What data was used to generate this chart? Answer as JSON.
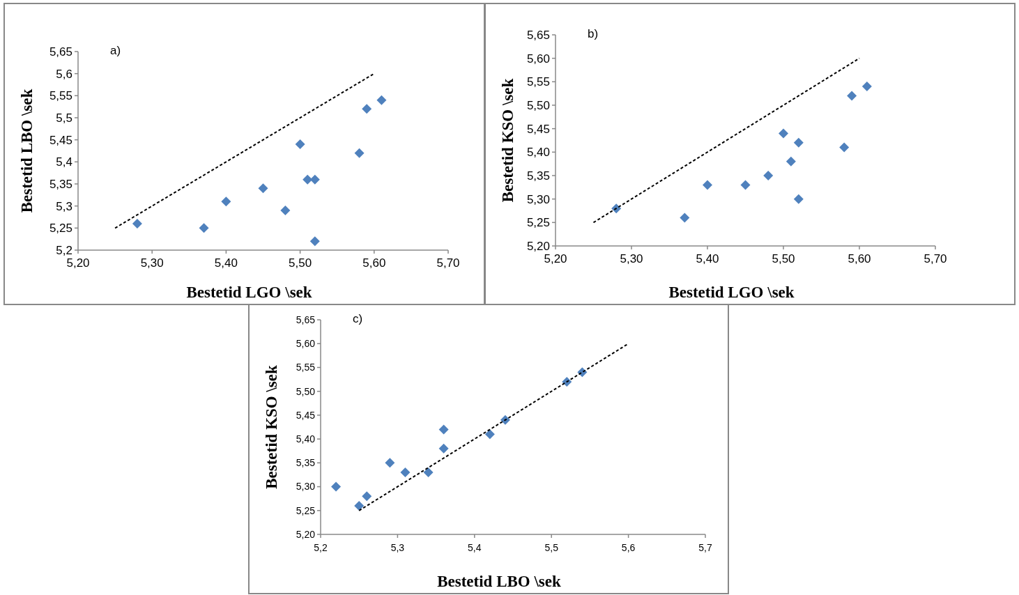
{
  "chart_data": [
    {
      "type": "scatter",
      "annotations": [
        "a)"
      ],
      "xlabel": "Bestetid LGO \\sek",
      "ylabel": "Bestetid LBO \\sek",
      "marker": "diamond",
      "grid": false,
      "xlim": [
        5.2,
        5.7
      ],
      "xticks": [
        {
          "value": 5.2,
          "label": "5,20"
        },
        {
          "value": 5.3,
          "label": "5,30"
        },
        {
          "value": 5.4,
          "label": "5,40"
        },
        {
          "value": 5.5,
          "label": "5,50"
        },
        {
          "value": 5.6,
          "label": "5,60"
        },
        {
          "value": 5.7,
          "label": "5,70"
        }
      ],
      "ylim": [
        5.2,
        5.65
      ],
      "yticks": [
        {
          "value": 5.2,
          "label": "5,2"
        },
        {
          "value": 5.25,
          "label": "5,25"
        },
        {
          "value": 5.3,
          "label": "5,3"
        },
        {
          "value": 5.35,
          "label": "5,35"
        },
        {
          "value": 5.4,
          "label": "5,4"
        },
        {
          "value": 5.45,
          "label": "5,45"
        },
        {
          "value": 5.5,
          "label": "5,5"
        },
        {
          "value": 5.55,
          "label": "5,55"
        },
        {
          "value": 5.6,
          "label": "5,6"
        },
        {
          "value": 5.65,
          "label": "5,65"
        }
      ],
      "series": [
        {
          "color": "#4f81bd",
          "x": [
            5.28,
            5.37,
            5.4,
            5.45,
            5.48,
            5.5,
            5.51,
            5.52,
            5.52,
            5.58,
            5.59,
            5.61
          ],
          "values": [
            5.26,
            5.25,
            5.31,
            5.34,
            5.29,
            5.44,
            5.36,
            5.36,
            5.22,
            5.42,
            5.52,
            5.54
          ]
        },
        {
          "type": "line",
          "color": "#000000",
          "line_style": "dashed",
          "marker": "none",
          "x": [
            5.25,
            5.6
          ],
          "values": [
            5.25,
            5.6
          ]
        }
      ]
    },
    {
      "type": "scatter",
      "annotations": [
        "b)"
      ],
      "xlabel": "Bestetid LGO \\sek",
      "ylabel": "Bestetid KSO \\sek",
      "marker": "diamond",
      "grid": false,
      "xlim": [
        5.2,
        5.7
      ],
      "xticks": [
        {
          "value": 5.2,
          "label": "5,20"
        },
        {
          "value": 5.3,
          "label": "5,30"
        },
        {
          "value": 5.4,
          "label": "5,40"
        },
        {
          "value": 5.5,
          "label": "5,50"
        },
        {
          "value": 5.6,
          "label": "5,60"
        },
        {
          "value": 5.7,
          "label": "5,70"
        }
      ],
      "ylim": [
        5.2,
        5.65
      ],
      "yticks": [
        {
          "value": 5.2,
          "label": "5,20"
        },
        {
          "value": 5.25,
          "label": "5,25"
        },
        {
          "value": 5.3,
          "label": "5,30"
        },
        {
          "value": 5.35,
          "label": "5,35"
        },
        {
          "value": 5.4,
          "label": "5,40"
        },
        {
          "value": 5.45,
          "label": "5,45"
        },
        {
          "value": 5.5,
          "label": "5,50"
        },
        {
          "value": 5.55,
          "label": "5,55"
        },
        {
          "value": 5.6,
          "label": "5,60"
        },
        {
          "value": 5.65,
          "label": "5,65"
        }
      ],
      "series": [
        {
          "color": "#4f81bd",
          "x": [
            5.28,
            5.37,
            5.4,
            5.45,
            5.48,
            5.5,
            5.51,
            5.52,
            5.52,
            5.58,
            5.59,
            5.61
          ],
          "values": [
            5.28,
            5.26,
            5.33,
            5.33,
            5.35,
            5.44,
            5.38,
            5.42,
            5.3,
            5.41,
            5.52,
            5.54
          ]
        },
        {
          "type": "line",
          "color": "#000000",
          "line_style": "dashed",
          "marker": "none",
          "x": [
            5.25,
            5.6
          ],
          "values": [
            5.25,
            5.6
          ]
        }
      ]
    },
    {
      "type": "scatter",
      "annotations": [
        "c)"
      ],
      "xlabel": "Bestetid LBO \\sek",
      "ylabel": "Bestetid KSO \\sek",
      "marker": "diamond",
      "grid": false,
      "xlim": [
        5.2,
        5.7
      ],
      "xticks": [
        {
          "value": 5.2,
          "label": "5,2"
        },
        {
          "value": 5.3,
          "label": "5,3"
        },
        {
          "value": 5.4,
          "label": "5,4"
        },
        {
          "value": 5.5,
          "label": "5,5"
        },
        {
          "value": 5.6,
          "label": "5,6"
        },
        {
          "value": 5.7,
          "label": "5,7"
        }
      ],
      "ylim": [
        5.2,
        5.65
      ],
      "yticks": [
        {
          "value": 5.2,
          "label": "5,20"
        },
        {
          "value": 5.25,
          "label": "5,25"
        },
        {
          "value": 5.3,
          "label": "5,30"
        },
        {
          "value": 5.35,
          "label": "5,35"
        },
        {
          "value": 5.4,
          "label": "5,40"
        },
        {
          "value": 5.45,
          "label": "5,45"
        },
        {
          "value": 5.5,
          "label": "5,50"
        },
        {
          "value": 5.55,
          "label": "5,55"
        },
        {
          "value": 5.6,
          "label": "5,60"
        },
        {
          "value": 5.65,
          "label": "5,65"
        }
      ],
      "series": [
        {
          "color": "#4f81bd",
          "x": [
            5.22,
            5.25,
            5.26,
            5.29,
            5.31,
            5.34,
            5.36,
            5.36,
            5.42,
            5.44,
            5.52,
            5.54
          ],
          "values": [
            5.3,
            5.26,
            5.28,
            5.35,
            5.33,
            5.33,
            5.42,
            5.38,
            5.41,
            5.44,
            5.52,
            5.54
          ]
        },
        {
          "type": "line",
          "color": "#000000",
          "line_style": "dashed",
          "marker": "none",
          "x": [
            5.25,
            5.6
          ],
          "values": [
            5.25,
            5.6
          ]
        }
      ]
    }
  ]
}
